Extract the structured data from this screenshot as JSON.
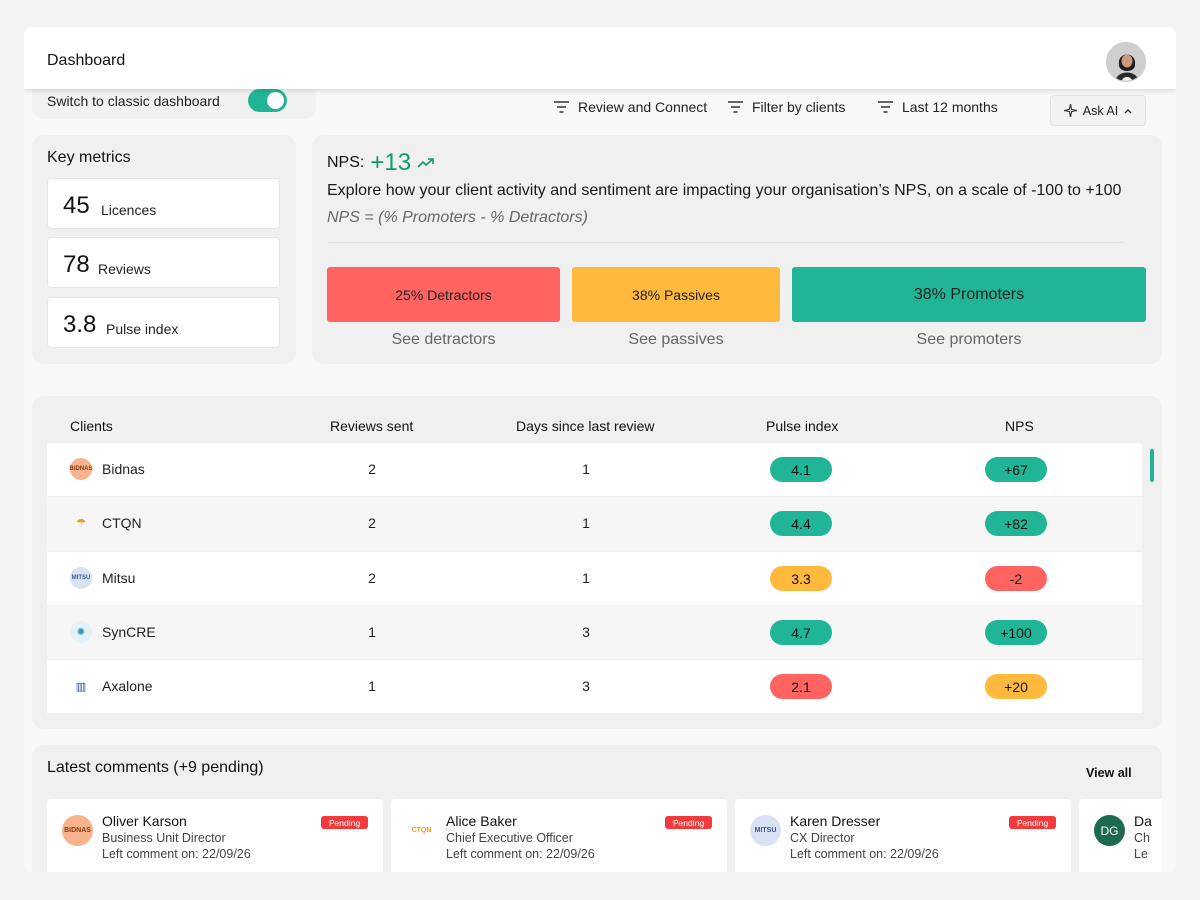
{
  "header": {
    "title": "Dashboard"
  },
  "classic_toggle": {
    "label": "Switch to classic dashboard",
    "on": true
  },
  "filters": [
    {
      "label": "Review and Connect",
      "icon": "filter-lines-icon"
    },
    {
      "label": "Filter by clients",
      "icon": "filter-lines-icon"
    },
    {
      "label": "Last 12 months",
      "icon": "filter-lines-icon"
    }
  ],
  "ask_ai": {
    "label": "Ask AI",
    "icon": "sparkle-icon"
  },
  "key_metrics": {
    "title": "Key metrics",
    "items": [
      {
        "value": "45",
        "label": "Licences"
      },
      {
        "value": "78",
        "label": "Reviews"
      },
      {
        "value": "3.8",
        "label": "Pulse index"
      }
    ]
  },
  "nps": {
    "label": "NPS:",
    "value": "+13",
    "description": "Explore how your client activity and sentiment are impacting your organisation’s NPS, on a scale of -100 to +100",
    "formula": "NPS = (% Promoters - % Detractors)",
    "segments": [
      {
        "label": "25% Detractors",
        "link": "See detractors",
        "color": "#ff6461"
      },
      {
        "label": "38% Passives",
        "link": "See passives",
        "color": "#ffb93d"
      },
      {
        "label": "38% Promoters",
        "link": "See promoters",
        "color": "#21b597"
      }
    ]
  },
  "clients_table": {
    "columns": [
      "Clients",
      "Reviews sent",
      "Days since last review",
      "Pulse index",
      "NPS"
    ],
    "rows": [
      {
        "client": "Bidnas",
        "reviews": "2",
        "days": "1",
        "pulse": "4.1",
        "nps": "+67",
        "pulse_color": "#21b597",
        "nps_color": "#21b597"
      },
      {
        "client": "CTQN",
        "reviews": "2",
        "days": "1",
        "pulse": "4.4",
        "nps": "+82",
        "pulse_color": "#21b597",
        "nps_color": "#21b597"
      },
      {
        "client": "Mitsu",
        "reviews": "2",
        "days": "1",
        "pulse": "3.3",
        "nps": "-2",
        "pulse_color": "#ffb93d",
        "nps_color": "#ff6461"
      },
      {
        "client": "SynCRE",
        "reviews": "1",
        "days": "3",
        "pulse": "4.7",
        "nps": "+100",
        "pulse_color": "#21b597",
        "nps_color": "#21b597"
      },
      {
        "client": "Axalone",
        "reviews": "1",
        "days": "3",
        "pulse": "2.1",
        "nps": "+20",
        "pulse_color": "#ff6461",
        "nps_color": "#ffb93d"
      }
    ]
  },
  "comments": {
    "title": "Latest comments (+9 pending)",
    "view_all": "View all",
    "items": [
      {
        "name": "Oliver Karson",
        "role": "Business Unit Director",
        "date": "Left comment on: 22/09/26",
        "badge": "Pending",
        "logo_text": "BIDNAS"
      },
      {
        "name": "Alice Baker",
        "role": "Chief Executive Officer",
        "date": "Left comment on: 22/09/26",
        "badge": "Pending",
        "logo_text": "CTQN"
      },
      {
        "name": "Karen Dresser",
        "role": "CX Director",
        "date": "Left comment on: 22/09/26",
        "badge": "Pending",
        "logo_text": "MITSU"
      },
      {
        "name": "Da",
        "role": "Ch",
        "date": "Le",
        "initials": "DG"
      }
    ]
  },
  "colors": {
    "accent": "#21b597",
    "nps_positive": "#0f9a6c",
    "detractor": "#ff6461",
    "passive": "#ffb93d",
    "pending": "#ef3b3b"
  }
}
